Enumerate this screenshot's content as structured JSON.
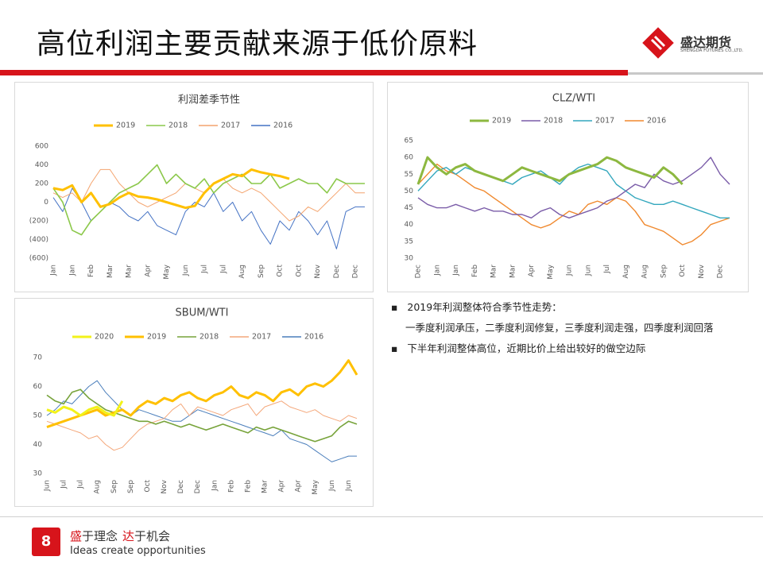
{
  "header": {
    "title": "高位利润主要贡献来源于低价原料",
    "logo_name": "盛达期货",
    "logo_sub": "SHENGDA FUTURES CO.,LTD."
  },
  "chart_data": [
    {
      "type": "line",
      "title": "利润差季节性",
      "categories": [
        "Jan",
        null,
        "Jan",
        null,
        "Feb",
        null,
        "Mar",
        null,
        "Mar",
        null,
        "Apr",
        null,
        "May",
        null,
        "Jun",
        null,
        "Jul",
        null,
        "Jul",
        null,
        "Aug",
        null,
        "Sep",
        null,
        "Oct",
        null,
        "Oct",
        null,
        "Nov",
        null,
        "Dec",
        null,
        "Dec",
        null
      ],
      "ylim": [
        -600,
        600
      ],
      "yticks": [
        600,
        400,
        200,
        0,
        {
          "value": -200,
          "label": "(200)"
        },
        {
          "value": -400,
          "label": "(400)"
        },
        {
          "value": -600,
          "label": "(600)"
        }
      ],
      "negative_tick_color": "#c00000",
      "grid": false,
      "legend": "top",
      "series": [
        {
          "name": "2019",
          "color": "#ffc000",
          "width": 3,
          "values": [
            150,
            130,
            180,
            0,
            100,
            -50,
            -20,
            50,
            100,
            60,
            50,
            30,
            0,
            -30,
            -60,
            -40,
            100,
            200,
            250,
            300,
            280,
            350,
            320,
            300,
            280,
            250,
            null,
            null,
            null,
            null,
            null,
            null,
            null,
            null
          ]
        },
        {
          "name": "2018",
          "color": "#8cc84b",
          "width": 1.6,
          "values": [
            150,
            0,
            -300,
            -350,
            -200,
            -100,
            0,
            100,
            150,
            200,
            300,
            400,
            200,
            300,
            200,
            150,
            250,
            100,
            200,
            250,
            300,
            200,
            200,
            300,
            150,
            200,
            250,
            200,
            200,
            100,
            250,
            200,
            200,
            200
          ]
        },
        {
          "name": "2017",
          "color": "#f4a46e",
          "width": 1,
          "values": [
            100,
            50,
            100,
            0,
            200,
            350,
            350,
            200,
            100,
            0,
            -50,
            0,
            50,
            100,
            200,
            150,
            100,
            200,
            250,
            150,
            100,
            150,
            100,
            0,
            -100,
            -200,
            -150,
            -50,
            -100,
            0,
            100,
            200,
            100,
            100
          ]
        },
        {
          "name": "2016",
          "color": "#4472c4",
          "width": 1,
          "values": [
            50,
            -100,
            150,
            0,
            -200,
            -100,
            0,
            -50,
            -150,
            -200,
            -100,
            -250,
            -300,
            -350,
            -100,
            0,
            -50,
            100,
            -100,
            0,
            -200,
            -100,
            -300,
            -450,
            -200,
            -300,
            -100,
            -200,
            -350,
            -200,
            -500,
            -100,
            -50,
            -50
          ]
        }
      ]
    },
    {
      "type": "line",
      "title": "CLZ/WTI",
      "categories": [
        "Dec",
        null,
        "Jan",
        null,
        "Jan",
        null,
        "Feb",
        null,
        "Mar",
        null,
        "Mar",
        null,
        "Apr",
        null,
        "May",
        null,
        "Jun",
        null,
        "Jun",
        null,
        "Jul",
        null,
        "Aug",
        null,
        "Aug",
        null,
        "Sep",
        null,
        "Oct",
        null,
        "Nov",
        null,
        "Dec",
        null
      ],
      "ylim": [
        30,
        65
      ],
      "yticks": [
        30,
        35,
        40,
        45,
        50,
        55,
        60,
        65
      ],
      "grid": false,
      "legend": "top",
      "series": [
        {
          "name": "2019",
          "color": "#8db840",
          "width": 3,
          "values": [
            52,
            60,
            57,
            55,
            57,
            58,
            56,
            55,
            54,
            53,
            55,
            57,
            56,
            55,
            54,
            53,
            55,
            56,
            57,
            58,
            60,
            59,
            57,
            56,
            55,
            54,
            57,
            55,
            52,
            null,
            null,
            null,
            null,
            null
          ]
        },
        {
          "name": "2018",
          "color": "#7a5ca8",
          "width": 1.4,
          "values": [
            48,
            46,
            45,
            45,
            46,
            45,
            44,
            45,
            44,
            44,
            43,
            43,
            42,
            44,
            45,
            43,
            42,
            43,
            44,
            45,
            47,
            48,
            50,
            52,
            51,
            55,
            53,
            52,
            53,
            55,
            57,
            60,
            55,
            52
          ]
        },
        {
          "name": "2017",
          "color": "#33a7bd",
          "width": 1.4,
          "values": [
            50,
            53,
            56,
            57,
            55,
            57,
            56,
            55,
            54,
            53,
            52,
            54,
            55,
            56,
            54,
            52,
            55,
            57,
            58,
            57,
            56,
            52,
            50,
            48,
            47,
            46,
            46,
            47,
            46,
            45,
            44,
            43,
            42,
            42
          ]
        },
        {
          "name": "2016",
          "color": "#f0892e",
          "width": 1.4,
          "values": [
            52,
            55,
            58,
            56,
            55,
            53,
            51,
            50,
            48,
            46,
            44,
            42,
            40,
            39,
            40,
            42,
            44,
            43,
            46,
            47,
            46,
            48,
            47,
            44,
            40,
            39,
            38,
            36,
            34,
            35,
            37,
            40,
            41,
            42
          ]
        }
      ]
    },
    {
      "type": "line",
      "title": "SBUM/WTI",
      "categories": [
        "Jun",
        null,
        "Jul",
        null,
        "Jul",
        null,
        "Aug",
        null,
        "Sep",
        null,
        "Sep",
        null,
        "Oct",
        null,
        "Nov",
        null,
        "Dec",
        null,
        "Dec",
        null,
        "Jan",
        null,
        "Feb",
        null,
        "Feb",
        null,
        "Mar",
        null,
        "Apr",
        null,
        "Apr",
        null,
        "May",
        null,
        "Jun",
        null,
        "Jun",
        null
      ],
      "ylim": [
        30,
        70
      ],
      "yticks": [
        30,
        40,
        50,
        60,
        70
      ],
      "grid": false,
      "legend": "top",
      "series": [
        {
          "name": "2020",
          "color": "#f2f21a",
          "width": 3,
          "values": [
            52,
            51,
            53,
            52,
            50,
            52,
            53,
            51,
            50,
            55,
            null,
            null,
            null,
            null,
            null,
            null,
            null,
            null,
            null,
            null,
            null,
            null,
            null,
            null,
            null,
            null,
            null,
            null,
            null,
            null,
            null,
            null,
            null,
            null,
            null,
            null,
            null,
            null
          ]
        },
        {
          "name": "2019",
          "color": "#ffc000",
          "width": 3,
          "values": [
            46,
            47,
            48,
            49,
            50,
            51,
            52,
            50,
            51,
            52,
            50,
            53,
            55,
            54,
            56,
            55,
            57,
            58,
            56,
            55,
            57,
            58,
            60,
            57,
            56,
            58,
            57,
            55,
            58,
            59,
            57,
            60,
            61,
            60,
            62,
            65,
            69,
            64
          ]
        },
        {
          "name": "2018",
          "color": "#77a33a",
          "width": 1.6,
          "values": [
            57,
            55,
            54,
            58,
            59,
            56,
            54,
            52,
            51,
            50,
            49,
            48,
            48,
            47,
            48,
            47,
            46,
            47,
            46,
            45,
            46,
            47,
            46,
            45,
            44,
            46,
            45,
            46,
            45,
            44,
            43,
            42,
            41,
            42,
            43,
            46,
            48,
            47
          ]
        },
        {
          "name": "2017",
          "color": "#f4a77a",
          "width": 1,
          "values": [
            48,
            47,
            46,
            45,
            44,
            42,
            43,
            40,
            38,
            39,
            42,
            45,
            47,
            48,
            49,
            52,
            54,
            50,
            53,
            52,
            51,
            50,
            52,
            53,
            54,
            50,
            53,
            54,
            55,
            53,
            52,
            51,
            52,
            50,
            49,
            48,
            50,
            49
          ]
        },
        {
          "name": "2016",
          "color": "#4a7ebb",
          "width": 1,
          "values": [
            50,
            52,
            55,
            54,
            57,
            60,
            62,
            58,
            55,
            52,
            50,
            52,
            51,
            50,
            49,
            48,
            48,
            50,
            52,
            51,
            50,
            49,
            48,
            47,
            46,
            45,
            44,
            43,
            45,
            42,
            41,
            40,
            38,
            36,
            34,
            35,
            36,
            36
          ]
        }
      ]
    }
  ],
  "bullets": [
    "2019年利润整体符合季节性走势：",
    "一季度利润承压，二季度利润修复，三季度利润走强，四季度利润回落",
    "下半年利润整体高位，近期比价上给出较好的做空边际"
  ],
  "footer": {
    "page": "8",
    "slogan_parts": [
      "盛",
      "于理念",
      "达",
      "于机会"
    ],
    "slogan_en": "Ideas create opportunities"
  }
}
